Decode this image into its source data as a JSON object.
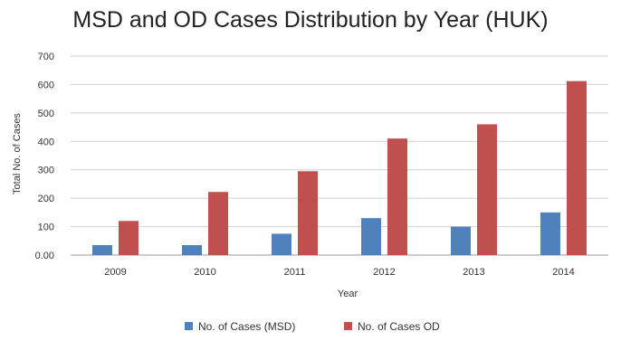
{
  "chart_data": {
    "type": "bar",
    "title": "MSD and OD Cases Distribution by Year (HUK)",
    "xlabel": "Year",
    "ylabel": "Total No. of Cases",
    "categories": [
      "2009",
      "2010",
      "2011",
      "2012",
      "2013",
      "2014"
    ],
    "series": [
      {
        "name": "No. of Cases (MSD)",
        "color": "#4f81bd",
        "values": [
          35,
          35,
          75,
          130,
          100,
          150
        ]
      },
      {
        "name": "No. of Cases OD",
        "color": "#c0504d",
        "values": [
          120,
          222,
          295,
          410,
          460,
          612
        ]
      }
    ],
    "ylim": [
      0,
      700
    ],
    "yticks": [
      0,
      100,
      200,
      300,
      400,
      500,
      600,
      700
    ],
    "ytick_labels": [
      "0.00",
      "100",
      "200",
      "300",
      "400",
      "500",
      "600",
      "700"
    ],
    "grid": true,
    "legend_position": "bottom"
  }
}
